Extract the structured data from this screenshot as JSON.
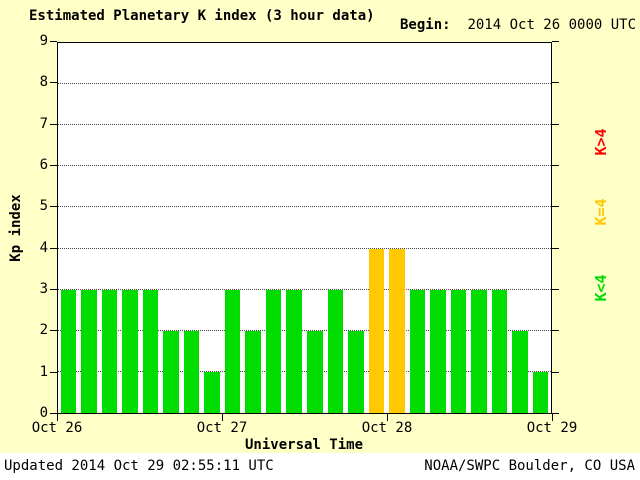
{
  "title": "Estimated Planetary K index (3 hour data)",
  "begin": {
    "label": "Begin:",
    "value": "2014 Oct 26 0000 UTC"
  },
  "footer": {
    "updated": "Updated 2014 Oct 29 02:55:11 UTC",
    "source": "NOAA/SWPC Boulder, CO USA"
  },
  "legend": [
    {
      "label": "K<4",
      "color": "#00DC00"
    },
    {
      "label": "K=4",
      "color": "#FFC800"
    },
    {
      "label": "K>4",
      "color": "#FF0000"
    }
  ],
  "colors": {
    "background": "#FFFFC8",
    "plot_background": "#FFFFFF",
    "green_lt4": "#00DC00",
    "yellow_eq4": "#FFC800",
    "red_gt4": "#FF0000"
  },
  "chart_data": {
    "type": "bar",
    "title": "Estimated Planetary K index (3 hour data)",
    "xlabel": "Universal Time",
    "ylabel": "Kp index",
    "ylim": [
      0,
      9
    ],
    "yticks": [
      0,
      1,
      2,
      3,
      4,
      5,
      6,
      7,
      8,
      9
    ],
    "xticklabels": [
      "Oct 26",
      "Oct 27",
      "Oct 28",
      "Oct 29"
    ],
    "interval_hours": 3,
    "grid": "horizontal-dotted",
    "legend_position": "right-rotated",
    "values": [
      3,
      3,
      3,
      3,
      3,
      2,
      2,
      1,
      3,
      2,
      3,
      3,
      2,
      3,
      2,
      4,
      4,
      3,
      3,
      3,
      3,
      3,
      2,
      1
    ],
    "color_rule": {
      "lt4": "#00DC00",
      "eq4": "#FFC800",
      "gt4": "#FF0000"
    }
  }
}
